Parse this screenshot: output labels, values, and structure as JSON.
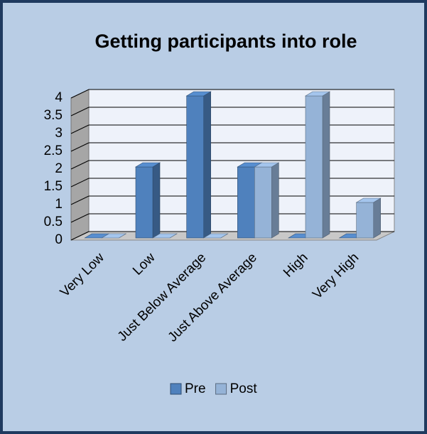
{
  "chart_data": {
    "type": "bar3d",
    "title": "Getting participants into role",
    "categories": [
      "Very Low",
      "Low",
      "Just Below Average",
      "Just Above Average",
      "High",
      "Very High"
    ],
    "series": [
      {
        "name": "Pre",
        "color": "#4f81bd",
        "values": [
          0,
          2,
          4,
          2,
          0,
          0
        ]
      },
      {
        "name": "Post",
        "color": "#95b3d7",
        "values": [
          0,
          0,
          0,
          2,
          4,
          1
        ]
      }
    ],
    "ylim": [
      0,
      4
    ],
    "yticks": [
      0,
      0.5,
      1,
      1.5,
      2,
      2.5,
      3,
      3.5,
      4
    ],
    "grid": true,
    "legend": "bottom"
  }
}
